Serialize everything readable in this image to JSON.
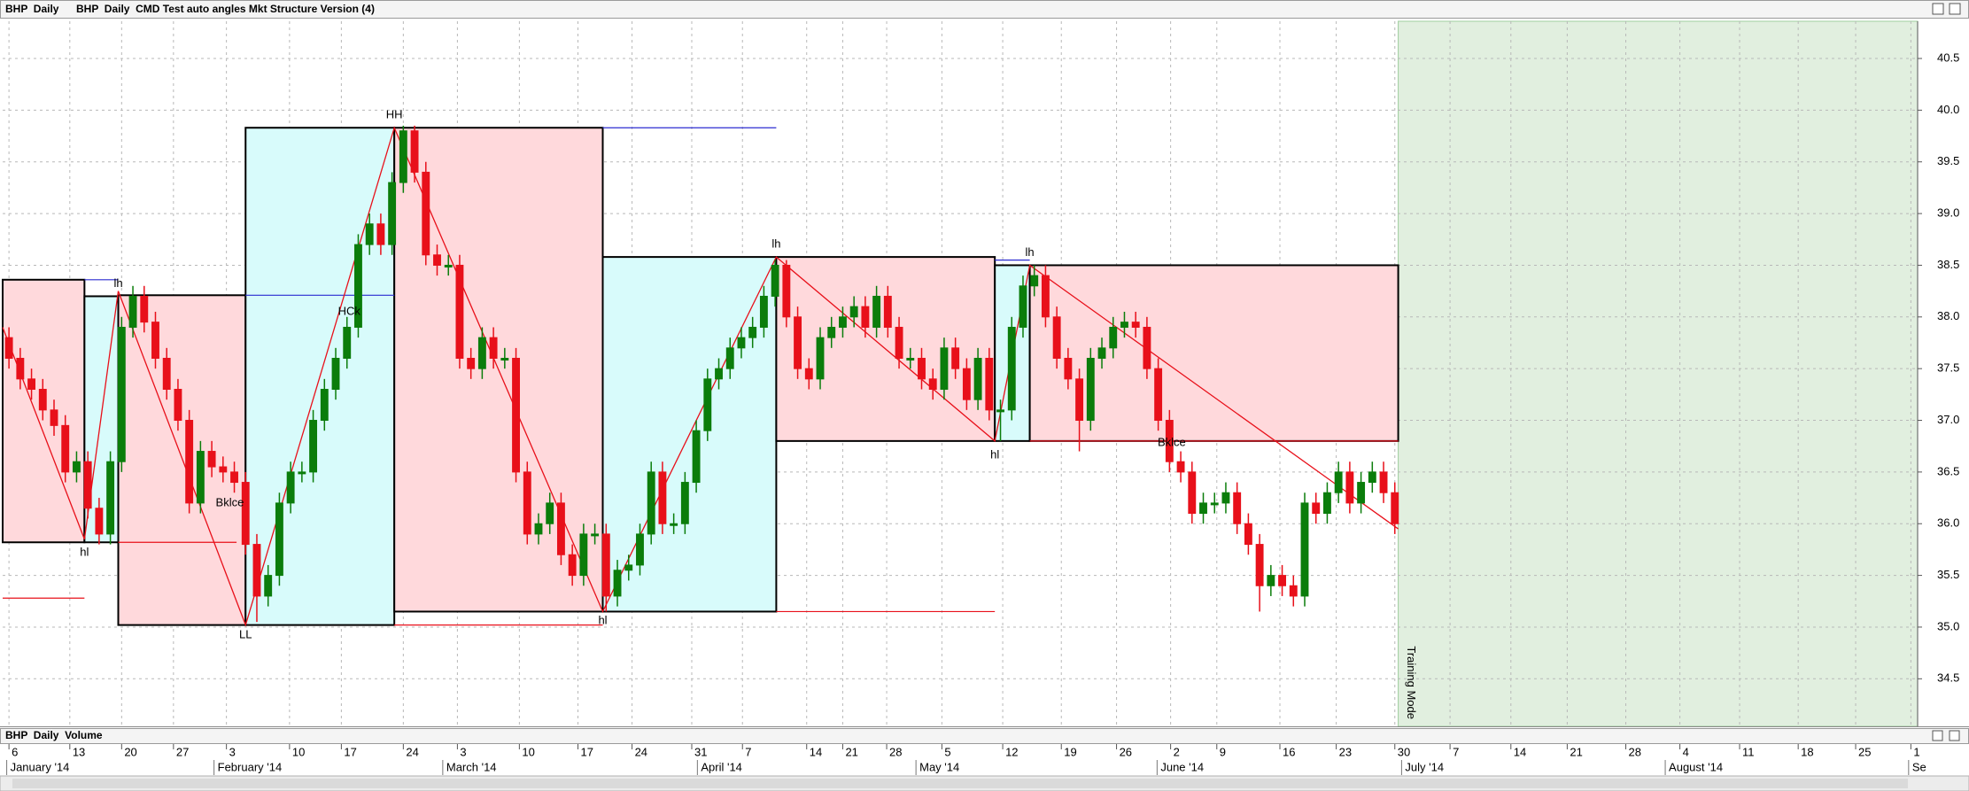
{
  "chart_data": {
    "type": "candlestick",
    "title": "BHP  Daily",
    "subtitle": "BHP  Daily  CMD Test auto angles Mkt Structure Version (4)",
    "volume_pane_title": "BHP  Daily  Volume",
    "up_color": "#0b7d0b",
    "down_color": "#e8101a",
    "grid": true,
    "xlim": [
      -0.56,
      169.4
    ],
    "ylim": [
      34.04,
      40.86
    ],
    "yticks": [
      34.5,
      {
        "value": 35,
        "label": "35.0"
      },
      35.5,
      {
        "value": 36,
        "label": "36.0"
      },
      36.5,
      {
        "value": 37,
        "label": "37.0"
      },
      37.5,
      {
        "value": 38,
        "label": "38.0"
      },
      38.5,
      {
        "value": 39,
        "label": "39.0"
      },
      39.5,
      {
        "value": 40,
        "label": "40.0"
      },
      40.5
    ],
    "xticks": [
      {
        "value": 0,
        "label": "6"
      },
      {
        "value": 5.4,
        "label": "13"
      },
      {
        "value": 10,
        "label": "20"
      },
      {
        "value": 14.6,
        "label": "27"
      },
      {
        "value": 19.3,
        "label": "3"
      },
      {
        "value": 24.9,
        "label": "10"
      },
      {
        "value": 29.5,
        "label": "17"
      },
      {
        "value": 35,
        "label": "24"
      },
      {
        "value": 39.8,
        "label": "3"
      },
      {
        "value": 45.3,
        "label": "10"
      },
      {
        "value": 50.5,
        "label": "17"
      },
      {
        "value": 55.3,
        "label": "24"
      },
      {
        "value": 60.6,
        "label": "31"
      },
      {
        "value": 65.1,
        "label": "7"
      },
      {
        "value": 70.8,
        "label": "14"
      },
      {
        "value": 74,
        "label": "21"
      },
      {
        "value": 77.9,
        "label": "28"
      },
      {
        "value": 82.8,
        "label": "5"
      },
      {
        "value": 88.2,
        "label": "12"
      },
      {
        "value": 93.4,
        "label": "19"
      },
      {
        "value": 98.3,
        "label": "26"
      },
      {
        "value": 103.1,
        "label": "2"
      },
      {
        "value": 107.2,
        "label": "9"
      },
      {
        "value": 112.8,
        "label": "16"
      },
      {
        "value": 117.8,
        "label": "23"
      },
      {
        "value": 123,
        "label": "30"
      },
      {
        "value": 127.9,
        "label": "7"
      },
      {
        "value": 133.3,
        "label": "14"
      },
      {
        "value": 138.3,
        "label": "21"
      },
      {
        "value": 143.5,
        "label": "28"
      },
      {
        "value": 148.3,
        "label": "4"
      },
      {
        "value": 153.6,
        "label": "11"
      },
      {
        "value": 158.8,
        "label": "18"
      },
      {
        "value": 163.9,
        "label": "25"
      },
      {
        "value": 168.8,
        "label": "1"
      }
    ],
    "month_ticks": [
      {
        "value": -0.2,
        "label": "January '14"
      },
      {
        "value": 18.2,
        "label": "February '14"
      },
      {
        "value": 38.5,
        "label": "March '14"
      },
      {
        "value": 61.1,
        "label": "April '14"
      },
      {
        "value": 80.5,
        "label": "May '14"
      },
      {
        "value": 101.9,
        "label": "June '14"
      },
      {
        "value": 123.6,
        "label": "July '14"
      },
      {
        "value": 147,
        "label": "August '14"
      },
      {
        "value": 168.6,
        "label": "Se"
      }
    ],
    "x": [
      0,
      1,
      2,
      3,
      4,
      5,
      6,
      7,
      8,
      9,
      10,
      11,
      12,
      13,
      14,
      15,
      16,
      17,
      18,
      19,
      20,
      21,
      22,
      23,
      24,
      25,
      26,
      27,
      28,
      29,
      30,
      31,
      32,
      33,
      34,
      35,
      36,
      37,
      38,
      39,
      40,
      41,
      42,
      43,
      44,
      45,
      46,
      47,
      48,
      49,
      50,
      51,
      52,
      53,
      54,
      55,
      56,
      57,
      58,
      59,
      60,
      61,
      62,
      63,
      64,
      65,
      66,
      67,
      68,
      69,
      70,
      71,
      72,
      73,
      74,
      75,
      76,
      77,
      78,
      79,
      80,
      81,
      82,
      83,
      84,
      85,
      86,
      87,
      88,
      89,
      90,
      91,
      92,
      93,
      94,
      95,
      96,
      97,
      98,
      99,
      100,
      101,
      102,
      103,
      104,
      105,
      106,
      107,
      108,
      109,
      110,
      111,
      112,
      113,
      114,
      115,
      116,
      117,
      118,
      119,
      120,
      121,
      122,
      123
    ],
    "open": [
      37.8,
      37.6,
      37.4,
      37.3,
      37.1,
      36.95,
      36.5,
      36.6,
      36.15,
      35.9,
      36.6,
      37.9,
      38.2,
      37.95,
      37.6,
      37.3,
      37.0,
      36.2,
      36.7,
      36.55,
      36.5,
      36.4,
      35.8,
      35.3,
      35.5,
      36.2,
      36.5,
      36.5,
      37.0,
      37.3,
      37.6,
      37.9,
      38.7,
      38.9,
      38.7,
      39.3,
      39.8,
      39.4,
      38.6,
      38.5,
      38.5,
      37.6,
      37.5,
      37.8,
      37.6,
      37.6,
      36.5,
      35.9,
      36.0,
      36.2,
      35.7,
      35.5,
      35.9,
      35.9,
      35.3,
      35.55,
      35.6,
      35.9,
      36.5,
      36.0,
      36.0,
      36.4,
      36.9,
      37.4,
      37.5,
      37.7,
      37.8,
      37.9,
      38.2,
      38.5,
      38.0,
      37.5,
      37.4,
      37.8,
      37.9,
      38.0,
      38.1,
      37.9,
      38.2,
      37.9,
      37.6,
      37.6,
      37.4,
      37.3,
      37.7,
      37.5,
      37.2,
      37.6,
      37.1,
      37.1,
      37.9,
      38.3,
      38.4,
      38.0,
      37.6,
      37.4,
      37.0,
      37.6,
      37.7,
      37.9,
      37.95,
      37.9,
      37.5,
      37.0,
      36.6,
      36.5,
      36.1,
      36.2,
      36.2,
      36.3,
      36.0,
      35.8,
      35.4,
      35.5,
      35.4,
      35.3,
      36.2,
      36.1,
      36.3,
      36.5,
      36.2,
      36.4,
      36.5,
      36.3
    ],
    "high": [
      37.9,
      37.7,
      37.5,
      37.4,
      37.2,
      37.05,
      36.7,
      36.7,
      36.25,
      36.7,
      38.0,
      38.3,
      38.3,
      38.05,
      37.7,
      37.4,
      37.1,
      36.8,
      36.8,
      36.65,
      36.6,
      36.5,
      35.9,
      35.6,
      36.3,
      36.6,
      36.6,
      37.1,
      37.4,
      37.7,
      38.0,
      38.8,
      39.0,
      39.0,
      39.4,
      39.85,
      39.85,
      39.5,
      38.7,
      38.6,
      38.6,
      37.7,
      37.9,
      37.9,
      37.7,
      37.7,
      36.6,
      36.1,
      36.3,
      36.3,
      35.8,
      36.0,
      36.0,
      36.0,
      35.65,
      35.7,
      36.0,
      36.6,
      36.6,
      36.1,
      36.5,
      37.0,
      37.5,
      37.6,
      37.8,
      37.9,
      38.0,
      38.3,
      38.55,
      38.55,
      38.1,
      37.6,
      37.9,
      38.0,
      38.1,
      38.2,
      38.2,
      38.3,
      38.3,
      38.0,
      37.7,
      37.7,
      37.5,
      37.8,
      37.8,
      37.6,
      37.7,
      37.7,
      37.2,
      38.0,
      38.4,
      38.5,
      38.5,
      38.1,
      37.7,
      37.5,
      37.7,
      37.8,
      38.0,
      38.05,
      38.05,
      38.0,
      37.6,
      37.1,
      36.7,
      36.6,
      36.3,
      36.3,
      36.4,
      36.4,
      36.1,
      35.9,
      35.6,
      35.6,
      35.5,
      36.3,
      36.3,
      36.4,
      36.6,
      36.6,
      36.5,
      36.6,
      36.6,
      36.4
    ],
    "low": [
      37.5,
      37.3,
      37.2,
      37.0,
      36.85,
      36.4,
      36.4,
      36.05,
      35.8,
      35.8,
      36.5,
      37.8,
      37.85,
      37.5,
      37.2,
      36.9,
      36.1,
      36.1,
      36.45,
      36.4,
      36.3,
      35.7,
      35.05,
      35.2,
      35.4,
      36.1,
      36.4,
      36.4,
      36.9,
      37.2,
      37.5,
      37.8,
      38.6,
      38.6,
      38.6,
      39.2,
      39.3,
      38.5,
      38.4,
      38.4,
      37.5,
      37.4,
      37.4,
      37.5,
      37.5,
      36.4,
      35.8,
      35.8,
      35.9,
      35.6,
      35.4,
      35.4,
      35.8,
      35.15,
      35.2,
      35.45,
      35.5,
      35.8,
      35.9,
      35.9,
      35.9,
      36.3,
      36.8,
      37.3,
      37.4,
      37.6,
      37.7,
      37.8,
      38.1,
      37.9,
      37.4,
      37.3,
      37.3,
      37.7,
      37.8,
      37.9,
      37.8,
      37.8,
      37.8,
      37.5,
      37.5,
      37.3,
      37.2,
      37.2,
      37.4,
      37.1,
      37.1,
      37.0,
      36.8,
      37.0,
      37.8,
      38.2,
      37.9,
      37.5,
      37.3,
      36.7,
      36.9,
      37.5,
      37.6,
      37.8,
      37.8,
      37.4,
      36.9,
      36.5,
      36.4,
      36.0,
      36.0,
      36.1,
      36.1,
      35.9,
      35.7,
      35.15,
      35.3,
      35.3,
      35.2,
      35.2,
      36.0,
      36.0,
      36.2,
      36.1,
      36.1,
      36.3,
      36.2,
      35.9
    ],
    "close": [
      37.6,
      37.4,
      37.3,
      37.1,
      36.95,
      36.5,
      36.6,
      36.15,
      35.9,
      36.6,
      37.9,
      38.2,
      37.95,
      37.6,
      37.3,
      37.0,
      36.2,
      36.7,
      36.55,
      36.5,
      36.4,
      35.8,
      35.3,
      35.5,
      36.2,
      36.5,
      36.5,
      37.0,
      37.3,
      37.6,
      37.9,
      38.7,
      38.9,
      38.7,
      39.3,
      39.8,
      39.4,
      38.6,
      38.5,
      38.5,
      37.6,
      37.5,
      37.8,
      37.6,
      37.6,
      36.5,
      35.9,
      36.0,
      36.2,
      35.7,
      35.5,
      35.9,
      35.9,
      35.3,
      35.55,
      35.6,
      35.9,
      36.5,
      36.0,
      36.0,
      36.4,
      36.9,
      37.4,
      37.5,
      37.7,
      37.8,
      37.9,
      38.2,
      38.5,
      38.0,
      37.5,
      37.4,
      37.8,
      37.9,
      38.0,
      38.1,
      37.9,
      38.2,
      37.9,
      37.6,
      37.6,
      37.4,
      37.3,
      37.7,
      37.5,
      37.2,
      37.6,
      37.1,
      37.1,
      37.9,
      38.3,
      38.4,
      38.0,
      37.6,
      37.4,
      37.0,
      37.6,
      37.7,
      37.9,
      37.95,
      37.9,
      37.5,
      37.0,
      36.6,
      36.5,
      36.1,
      36.2,
      36.2,
      36.3,
      36.0,
      35.8,
      35.4,
      35.5,
      35.4,
      35.3,
      36.2,
      36.1,
      36.3,
      36.5,
      36.2,
      36.4,
      36.5,
      36.3,
      36.0
    ],
    "zones": [
      {
        "x": [
          -0.56,
          6.7
        ],
        "y": [
          35.82,
          38.36
        ],
        "color": "#ffd9dc"
      },
      {
        "x": [
          6.7,
          9.7
        ],
        "y": [
          35.82,
          38.2
        ],
        "color": "#d8fbfb"
      },
      {
        "x": [
          9.7,
          21
        ],
        "y": [
          35.02,
          38.21
        ],
        "color": "#ffd9dc"
      },
      {
        "x": [
          21,
          34.2
        ],
        "y": [
          35.02,
          39.83
        ],
        "color": "#d8fbfb"
      },
      {
        "x": [
          34.2,
          52.7
        ],
        "y": [
          35.15,
          39.83
        ],
        "color": "#ffd9dc"
      },
      {
        "x": [
          52.7,
          68.1
        ],
        "y": [
          35.15,
          38.58
        ],
        "color": "#d8fbfb"
      },
      {
        "x": [
          68.1,
          87.5
        ],
        "y": [
          36.8,
          38.58
        ],
        "color": "#ffd9dc"
      },
      {
        "x": [
          87.5,
          90.6
        ],
        "y": [
          36.8,
          38.5
        ],
        "color": "#d8fbfb"
      },
      {
        "x": [
          90.6,
          123.3
        ],
        "y": [
          36.8,
          38.5
        ],
        "color": "#ffd9dc"
      }
    ],
    "levels": [
      {
        "x": [
          6.7,
          9.7
        ],
        "y": 38.36,
        "color": "#2b2bd0"
      },
      {
        "x": [
          9.7,
          20.2
        ],
        "y": 35.82,
        "color": "#e8101a"
      },
      {
        "x": [
          -0.56,
          6.7
        ],
        "y": 35.28,
        "color": "#e8101a"
      },
      {
        "x": [
          21,
          34.2
        ],
        "y": 38.21,
        "color": "#2b2bd0"
      },
      {
        "x": [
          52.7,
          68.1
        ],
        "y": 39.83,
        "color": "#2b2bd0"
      },
      {
        "x": [
          34.2,
          52.7
        ],
        "y": 35.02,
        "color": "#e8101a"
      },
      {
        "x": [
          68.1,
          87.5
        ],
        "y": 35.15,
        "color": "#e8101a"
      },
      {
        "x": [
          87.5,
          90.6
        ],
        "y": 38.55,
        "color": "#2b2bd0"
      },
      {
        "x": [
          90.6,
          123.3
        ],
        "y": 36.8,
        "color": "#e8101a"
      }
    ],
    "zigzag": {
      "color": "#e8101a",
      "x": [
        -0.56,
        6.7,
        9.7,
        21,
        34.2,
        52.7,
        68.1,
        87.5,
        90.6,
        123.3
      ],
      "y": [
        37.9,
        35.85,
        38.25,
        35.02,
        39.83,
        35.15,
        38.58,
        36.8,
        38.5,
        35.95
      ]
    },
    "annotations": [
      {
        "text": "lh",
        "x": 9.7,
        "y": 38.32,
        "color": "#e8101a"
      },
      {
        "text": "hl",
        "x": 6.7,
        "y": 35.72,
        "color": "#2b2bd0"
      },
      {
        "text": "LL",
        "x": 21,
        "y": 34.92,
        "color": "#e8101a"
      },
      {
        "text": "HH",
        "x": 34.2,
        "y": 39.95,
        "color": "#2b2bd0"
      },
      {
        "text": "hl",
        "x": 52.7,
        "y": 35.06,
        "color": "#2b2bd0"
      },
      {
        "text": "lh",
        "x": 68.1,
        "y": 38.7,
        "color": "#e8101a"
      },
      {
        "text": "hl",
        "x": 87.5,
        "y": 36.66,
        "color": "#2b2bd0"
      },
      {
        "text": "lh",
        "x": 90.6,
        "y": 38.62,
        "color": "#a020c0"
      },
      {
        "text": "Bklce",
        "x": 19.6,
        "y": 36.2,
        "color": "#333333"
      },
      {
        "text": "HCk",
        "x": 30.2,
        "y": 38.05,
        "color": "#333333"
      },
      {
        "text": "Bklce",
        "x": 103.2,
        "y": 36.78,
        "color": "#333333"
      }
    ],
    "training_region": {
      "x_start": 123.3,
      "label": "Training Mode",
      "color": "#e1efdf",
      "text_color": "#93c993"
    }
  }
}
